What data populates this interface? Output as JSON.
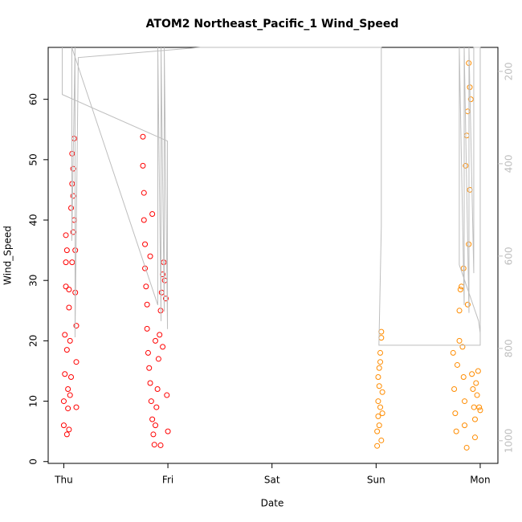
{
  "chart_data": {
    "type": "scatter",
    "title": "ATOM2 Northeast_Pacific_1 Wind_Speed",
    "x_label": "Date",
    "y_label": "Wind_Speed",
    "xlim": [
      -0.15,
      4.17
    ],
    "xticks": [
      {
        "value": 0,
        "label": "Thu"
      },
      {
        "value": 1,
        "label": "Fri"
      },
      {
        "value": 2,
        "label": "Sat"
      },
      {
        "value": 3,
        "label": "Sun"
      },
      {
        "value": 4,
        "label": "Mon"
      }
    ],
    "ylim": [
      -0.3,
      68.6
    ],
    "yticks": [
      0,
      10,
      20,
      30,
      40,
      50,
      60
    ],
    "y2lim": [
      1049,
      148
    ],
    "y2ticks": [
      200,
      400,
      600,
      800,
      1000
    ],
    "series": [
      {
        "type": "scatter",
        "color": "#ff0000",
        "x": [
          0.0,
          0.0,
          0.01,
          0.01,
          0.02,
          0.02,
          0.02,
          0.03,
          0.03,
          0.04,
          0.04,
          0.05,
          0.05,
          0.06,
          0.06,
          0.07,
          0.07,
          0.08,
          0.08,
          0.09,
          0.09,
          0.1,
          0.1,
          0.11,
          0.11,
          0.12,
          0.12,
          0.12,
          0.05,
          0.03,
          0.08,
          0.09,
          0.76,
          0.76,
          0.77,
          0.77,
          0.78,
          0.78,
          0.79,
          0.8,
          0.8,
          0.81,
          0.82,
          0.83,
          0.84,
          0.85,
          0.86,
          0.87,
          0.88,
          0.89,
          0.9,
          0.91,
          0.92,
          0.93,
          0.94,
          0.95,
          0.96,
          0.97,
          0.98,
          0.99,
          1.0,
          0.93,
          0.85,
          0.83,
          0.88,
          0.95
        ],
        "values": [
          6,
          10,
          14.5,
          21,
          29,
          33,
          37.5,
          35,
          4.5,
          12,
          8.8,
          25.5,
          28.5,
          20,
          11,
          14,
          42,
          46,
          51,
          48.5,
          44,
          53.5,
          40,
          35,
          28,
          22.5,
          16.5,
          9,
          5.3,
          18.5,
          33,
          38,
          53.8,
          49,
          44.5,
          40,
          36,
          32,
          29,
          26,
          22,
          18,
          15.5,
          13,
          10,
          7,
          4.5,
          2.8,
          6,
          9,
          12,
          17,
          21,
          25,
          28,
          31,
          33,
          30,
          27,
          11,
          5,
          2.7,
          41,
          34,
          20,
          19
        ]
      },
      {
        "type": "scatter",
        "color": "#ff8c00",
        "x": [
          3.01,
          3.01,
          3.02,
          3.02,
          3.03,
          3.03,
          3.04,
          3.05,
          3.05,
          3.04,
          3.03,
          3.02,
          3.06,
          3.06,
          3.05,
          3.04,
          3.74,
          3.75,
          3.76,
          3.77,
          3.78,
          3.8,
          3.81,
          3.82,
          3.83,
          3.84,
          3.85,
          3.85,
          3.86,
          3.87,
          3.88,
          3.89,
          3.9,
          3.91,
          3.9,
          3.89,
          3.88,
          3.87,
          3.92,
          3.93,
          3.94,
          3.95,
          3.96,
          3.97,
          3.98,
          3.99,
          4.0,
          3.95,
          3.8,
          3.84
        ],
        "values": [
          2.6,
          5,
          7.5,
          10,
          12.5,
          15.5,
          18,
          21.5,
          20.5,
          9,
          6,
          14,
          11.5,
          8,
          3.5,
          16.5,
          18,
          12,
          8,
          5,
          16,
          25,
          28.5,
          29,
          19,
          14,
          10,
          6,
          49,
          54,
          58,
          66,
          62,
          60,
          45,
          36,
          26,
          2.3,
          14.5,
          12,
          9,
          7,
          13,
          11,
          15,
          9,
          8.5,
          4,
          20,
          32
        ]
      },
      {
        "type": "line",
        "axis": "y2",
        "color": "#bebebe",
        "x": [
          -0.015,
          -0.015,
          0.996,
          0.996,
          0.965,
          0.965,
          0.934,
          0.934,
          0.903,
          0.903,
          0.077,
          0.077,
          0.108,
          0.108,
          0.139,
          1.313,
          3.05,
          3.05,
          3.027,
          4.0,
          4.0,
          3.938,
          3.938,
          3.892,
          3.892,
          3.846,
          3.846,
          3.799,
          3.799,
          3.985,
          4.0
        ],
        "values": [
          148,
          250,
          351,
          758,
          148,
          720,
          148,
          741,
          148,
          706,
          148,
          567,
          148,
          776,
          170,
          148,
          148,
          536,
          793,
          793,
          148,
          148,
          637,
          148,
          723,
          148,
          706,
          148,
          619,
          741,
          767
        ]
      }
    ]
  }
}
